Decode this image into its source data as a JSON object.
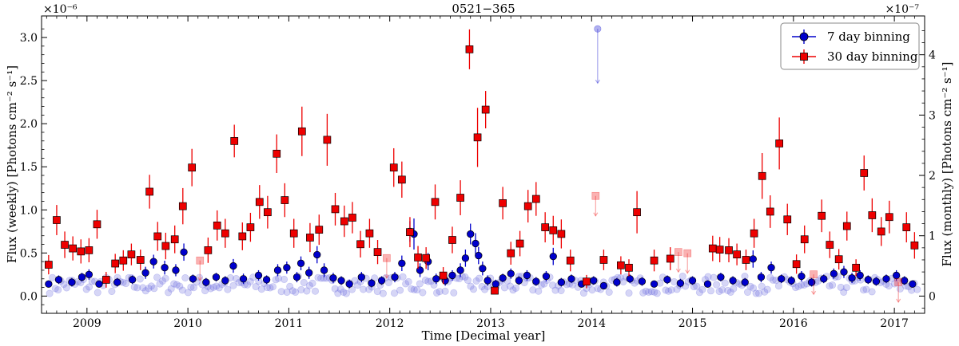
{
  "chart_data": {
    "type": "scatter",
    "title": "0521−365",
    "xlabel": "Time [Decimal year]",
    "ylabel_left": "Flux (weekly) [Photons cm⁻² s⁻¹]",
    "ylabel_right": "Flux (monthly) [Photons cm⁻² s⁻¹]",
    "left_exponent_label": "×10⁻⁶",
    "right_exponent_label": "×10⁻⁷",
    "xlim": [
      2008.55,
      2017.3
    ],
    "ylim_left": [
      -0.2,
      3.25
    ],
    "ylim_right": [
      -0.2857,
      4.643
    ],
    "x_ticks": [
      "2009",
      "2010",
      "2011",
      "2012",
      "2013",
      "2014",
      "2015",
      "2016",
      "2017"
    ],
    "y_ticks_left": [
      "0.0",
      "0.5",
      "1.0",
      "1.5",
      "2.0",
      "2.5",
      "3.0"
    ],
    "y_ticks_right": [
      "0",
      "1",
      "2",
      "3",
      "4"
    ],
    "legend_position": "top-right",
    "grid": false,
    "series": [
      {
        "name": "7 day binning",
        "axis": "left",
        "color": "#0000cc",
        "marker": "circle",
        "detections": [
          [
            2008.62,
            0.14,
            0.04
          ],
          [
            2008.72,
            0.19,
            0.05
          ],
          [
            2008.85,
            0.16,
            0.05
          ],
          [
            2008.95,
            0.22,
            0.05
          ],
          [
            2009.02,
            0.25,
            0.06
          ],
          [
            2009.12,
            0.14,
            0.04
          ],
          [
            2009.3,
            0.16,
            0.05
          ],
          [
            2009.45,
            0.19,
            0.05
          ],
          [
            2009.58,
            0.27,
            0.07
          ],
          [
            2009.66,
            0.4,
            0.08
          ],
          [
            2009.77,
            0.33,
            0.08
          ],
          [
            2009.88,
            0.3,
            0.07
          ],
          [
            2009.96,
            0.51,
            0.1
          ],
          [
            2010.05,
            0.2,
            0.05
          ],
          [
            2010.18,
            0.16,
            0.05
          ],
          [
            2010.28,
            0.22,
            0.05
          ],
          [
            2010.37,
            0.18,
            0.05
          ],
          [
            2010.45,
            0.35,
            0.08
          ],
          [
            2010.55,
            0.2,
            0.06
          ],
          [
            2010.7,
            0.24,
            0.06
          ],
          [
            2010.78,
            0.19,
            0.05
          ],
          [
            2010.89,
            0.3,
            0.07
          ],
          [
            2010.98,
            0.33,
            0.07
          ],
          [
            2011.08,
            0.22,
            0.06
          ],
          [
            2011.12,
            0.38,
            0.08
          ],
          [
            2011.2,
            0.27,
            0.07
          ],
          [
            2011.28,
            0.48,
            0.1
          ],
          [
            2011.35,
            0.3,
            0.08
          ],
          [
            2011.44,
            0.21,
            0.06
          ],
          [
            2011.52,
            0.18,
            0.05
          ],
          [
            2011.6,
            0.14,
            0.05
          ],
          [
            2011.72,
            0.22,
            0.06
          ],
          [
            2011.82,
            0.15,
            0.05
          ],
          [
            2011.92,
            0.18,
            0.05
          ],
          [
            2012.05,
            0.22,
            0.06
          ],
          [
            2012.12,
            0.38,
            0.09
          ],
          [
            2012.2,
            0.75,
            0.12
          ],
          [
            2012.24,
            0.72,
            0.18
          ],
          [
            2012.3,
            0.3,
            0.08
          ],
          [
            2012.38,
            0.4,
            0.1
          ],
          [
            2012.46,
            0.2,
            0.06
          ],
          [
            2012.55,
            0.18,
            0.06
          ],
          [
            2012.62,
            0.24,
            0.06
          ],
          [
            2012.7,
            0.3,
            0.08
          ],
          [
            2012.75,
            0.44,
            0.1
          ],
          [
            2012.8,
            0.72,
            0.12
          ],
          [
            2012.85,
            0.61,
            0.12
          ],
          [
            2012.88,
            0.47,
            0.1
          ],
          [
            2012.92,
            0.32,
            0.08
          ],
          [
            2012.97,
            0.18,
            0.06
          ],
          [
            2013.05,
            0.14,
            0.05
          ],
          [
            2013.12,
            0.21,
            0.05
          ],
          [
            2013.2,
            0.26,
            0.06
          ],
          [
            2013.28,
            0.18,
            0.05
          ],
          [
            2013.36,
            0.24,
            0.06
          ],
          [
            2013.45,
            0.17,
            0.05
          ],
          [
            2013.55,
            0.23,
            0.06
          ],
          [
            2013.62,
            0.46,
            0.1
          ],
          [
            2013.7,
            0.16,
            0.05
          ],
          [
            2013.8,
            0.2,
            0.05
          ],
          [
            2013.9,
            0.14,
            0.04
          ],
          [
            2014.02,
            0.18,
            0.05
          ],
          [
            2014.12,
            0.12,
            0.04
          ],
          [
            2014.25,
            0.16,
            0.05
          ],
          [
            2014.38,
            0.2,
            0.05
          ],
          [
            2014.5,
            0.17,
            0.05
          ],
          [
            2014.62,
            0.14,
            0.04
          ],
          [
            2014.75,
            0.19,
            0.05
          ],
          [
            2014.88,
            0.15,
            0.05
          ],
          [
            2015.0,
            0.18,
            0.05
          ],
          [
            2015.15,
            0.14,
            0.04
          ],
          [
            2015.28,
            0.22,
            0.05
          ],
          [
            2015.4,
            0.18,
            0.05
          ],
          [
            2015.52,
            0.16,
            0.05
          ],
          [
            2015.6,
            0.43,
            0.1
          ],
          [
            2015.68,
            0.22,
            0.06
          ],
          [
            2015.78,
            0.33,
            0.07
          ],
          [
            2015.88,
            0.2,
            0.05
          ],
          [
            2015.98,
            0.18,
            0.05
          ],
          [
            2016.08,
            0.23,
            0.06
          ],
          [
            2016.18,
            0.16,
            0.05
          ],
          [
            2016.3,
            0.2,
            0.05
          ],
          [
            2016.4,
            0.26,
            0.06
          ],
          [
            2016.5,
            0.28,
            0.07
          ],
          [
            2016.58,
            0.21,
            0.06
          ],
          [
            2016.66,
            0.24,
            0.06
          ],
          [
            2016.74,
            0.19,
            0.05
          ],
          [
            2016.82,
            0.17,
            0.05
          ],
          [
            2016.92,
            0.2,
            0.05
          ],
          [
            2017.02,
            0.24,
            0.06
          ],
          [
            2017.1,
            0.18,
            0.05
          ],
          [
            2017.18,
            0.14,
            0.04
          ]
        ],
        "upper_limits": [
          [
            2014.06,
            3.1
          ]
        ]
      },
      {
        "name": "30 day binning",
        "axis": "right",
        "color": "#ee0000",
        "marker": "square",
        "detections": [
          [
            2008.62,
            0.52,
            0.16
          ],
          [
            2008.7,
            1.26,
            0.25
          ],
          [
            2008.78,
            0.85,
            0.22
          ],
          [
            2008.86,
            0.79,
            0.2
          ],
          [
            2008.94,
            0.74,
            0.2
          ],
          [
            2009.02,
            0.76,
            0.2
          ],
          [
            2009.1,
            1.19,
            0.24
          ],
          [
            2009.19,
            0.27,
            0.13
          ],
          [
            2009.28,
            0.54,
            0.16
          ],
          [
            2009.36,
            0.59,
            0.17
          ],
          [
            2009.44,
            0.69,
            0.18
          ],
          [
            2009.53,
            0.6,
            0.17
          ],
          [
            2009.62,
            1.73,
            0.28
          ],
          [
            2009.7,
            0.99,
            0.24
          ],
          [
            2009.78,
            0.83,
            0.22
          ],
          [
            2009.87,
            0.94,
            0.23
          ],
          [
            2009.95,
            1.49,
            0.3
          ],
          [
            2010.04,
            2.13,
            0.31
          ],
          [
            2010.2,
            0.76,
            0.21
          ],
          [
            2010.29,
            1.17,
            0.25
          ],
          [
            2010.37,
            1.04,
            0.24
          ],
          [
            2010.46,
            2.57,
            0.27
          ],
          [
            2010.54,
            0.99,
            0.23
          ],
          [
            2010.62,
            1.14,
            0.24
          ],
          [
            2010.71,
            1.56,
            0.28
          ],
          [
            2010.79,
            1.39,
            0.27
          ],
          [
            2010.88,
            2.36,
            0.32
          ],
          [
            2010.96,
            1.59,
            0.28
          ],
          [
            2011.05,
            1.04,
            0.24
          ],
          [
            2011.13,
            2.73,
            0.41
          ],
          [
            2011.21,
            0.97,
            0.24
          ],
          [
            2011.3,
            1.1,
            0.25
          ],
          [
            2011.38,
            2.59,
            0.43
          ],
          [
            2011.46,
            1.44,
            0.27
          ],
          [
            2011.55,
            1.24,
            0.26
          ],
          [
            2011.63,
            1.3,
            0.26
          ],
          [
            2011.71,
            0.86,
            0.22
          ],
          [
            2011.8,
            1.04,
            0.24
          ],
          [
            2011.88,
            0.73,
            0.2
          ],
          [
            2012.04,
            2.13,
            0.32
          ],
          [
            2012.12,
            1.93,
            0.3
          ],
          [
            2012.2,
            1.06,
            0.25
          ],
          [
            2012.28,
            0.64,
            0.19
          ],
          [
            2012.36,
            0.63,
            0.18
          ],
          [
            2012.45,
            1.56,
            0.29
          ],
          [
            2012.53,
            0.34,
            0.14
          ],
          [
            2012.62,
            0.93,
            0.22
          ],
          [
            2012.7,
            1.63,
            0.29
          ],
          [
            2012.79,
            4.09,
            0.33
          ],
          [
            2012.87,
            2.63,
            0.49
          ],
          [
            2012.95,
            3.09,
            0.31
          ],
          [
            2013.04,
            0.09,
            0.05
          ],
          [
            2013.12,
            1.54,
            0.27
          ],
          [
            2013.2,
            0.71,
            0.19
          ],
          [
            2013.29,
            0.87,
            0.21
          ],
          [
            2013.37,
            1.49,
            0.27
          ],
          [
            2013.45,
            1.61,
            0.28
          ],
          [
            2013.54,
            1.14,
            0.25
          ],
          [
            2013.62,
            1.09,
            0.24
          ],
          [
            2013.7,
            1.03,
            0.24
          ],
          [
            2013.79,
            0.59,
            0.18
          ],
          [
            2013.95,
            0.24,
            0.11
          ],
          [
            2014.12,
            0.6,
            0.17
          ],
          [
            2014.29,
            0.51,
            0.15
          ],
          [
            2014.37,
            0.47,
            0.14
          ],
          [
            2014.45,
            1.39,
            0.35
          ],
          [
            2014.62,
            0.59,
            0.18
          ],
          [
            2014.78,
            0.62,
            0.19
          ],
          [
            2015.2,
            0.79,
            0.21
          ],
          [
            2015.27,
            0.77,
            0.21
          ],
          [
            2015.36,
            0.76,
            0.2
          ],
          [
            2015.44,
            0.69,
            0.18
          ],
          [
            2015.53,
            0.6,
            0.17
          ],
          [
            2015.61,
            1.04,
            0.24
          ],
          [
            2015.69,
            1.99,
            0.38
          ],
          [
            2015.77,
            1.4,
            0.27
          ],
          [
            2015.86,
            2.53,
            0.43
          ],
          [
            2015.94,
            1.27,
            0.26
          ],
          [
            2016.03,
            0.53,
            0.16
          ],
          [
            2016.11,
            0.94,
            0.23
          ],
          [
            2016.28,
            1.33,
            0.27
          ],
          [
            2016.36,
            0.85,
            0.22
          ],
          [
            2016.45,
            0.61,
            0.17
          ],
          [
            2016.53,
            1.16,
            0.24
          ],
          [
            2016.62,
            0.47,
            0.14
          ],
          [
            2016.7,
            2.04,
            0.29
          ],
          [
            2016.78,
            1.34,
            0.28
          ],
          [
            2016.87,
            1.07,
            0.24
          ],
          [
            2016.95,
            1.31,
            0.27
          ],
          [
            2017.12,
            1.14,
            0.25
          ],
          [
            2017.2,
            0.84,
            0.22
          ]
        ],
        "upper_limits": [
          [
            2010.12,
            0.59
          ],
          [
            2011.97,
            0.63
          ],
          [
            2014.04,
            1.66
          ],
          [
            2014.86,
            0.73
          ],
          [
            2014.95,
            0.71
          ],
          [
            2016.2,
            0.36
          ],
          [
            2017.04,
            0.23
          ]
        ]
      }
    ]
  }
}
